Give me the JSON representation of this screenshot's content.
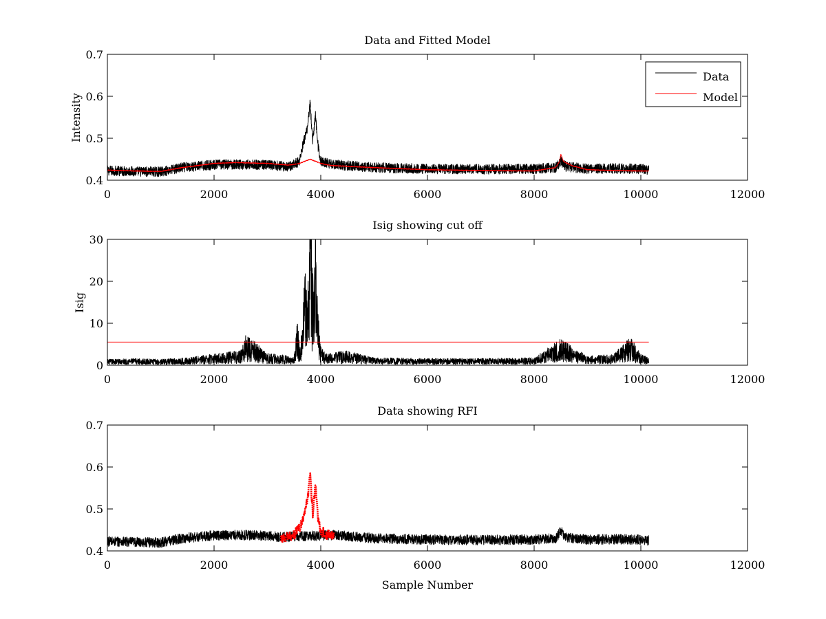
{
  "colors": {
    "data": "#000000",
    "model": "#ff0000",
    "rfi": "#ff0000",
    "axes": "#000000",
    "background": "#ffffff"
  },
  "chart_data": [
    {
      "type": "line",
      "title": "Data and Fitted Model",
      "xlabel": "",
      "ylabel": "Intensity",
      "xlim": [
        0,
        12000
      ],
      "ylim": [
        0.4,
        0.7
      ],
      "xticks": [
        0,
        2000,
        4000,
        6000,
        8000,
        10000,
        12000
      ],
      "yticks": [
        0.4,
        0.5,
        0.6,
        0.7
      ],
      "xtick_labels": [
        "0",
        "2000",
        "4000",
        "6000",
        "8000",
        "10000",
        "12000"
      ],
      "ytick_labels": [
        "0.4",
        "0.5",
        "0.6",
        "0.7"
      ],
      "legend_position": "top-right",
      "legend": [
        "Data",
        "Model"
      ],
      "series": [
        {
          "name": "Data",
          "color": "#000000",
          "x": [
            0,
            500,
            1000,
            1400,
            2000,
            2400,
            3000,
            3400,
            3600,
            3650,
            3700,
            3750,
            3800,
            3850,
            3900,
            3950,
            4000,
            4200,
            5000,
            6000,
            7000,
            8000,
            8400,
            8500,
            8600,
            9000,
            9500,
            10000,
            10150
          ],
          "y": [
            0.423,
            0.421,
            0.42,
            0.43,
            0.437,
            0.438,
            0.436,
            0.432,
            0.445,
            0.475,
            0.5,
            0.52,
            0.586,
            0.49,
            0.556,
            0.48,
            0.445,
            0.438,
            0.43,
            0.427,
            0.426,
            0.427,
            0.43,
            0.445,
            0.432,
            0.427,
            0.428,
            0.427,
            0.425
          ]
        },
        {
          "name": "Model",
          "color": "#ff0000",
          "x": [
            0,
            500,
            1000,
            1400,
            2000,
            2400,
            3000,
            3400,
            3600,
            3700,
            3800,
            3900,
            4000,
            4200,
            5000,
            6000,
            7000,
            8000,
            8400,
            8480,
            8500,
            8550,
            8700,
            9000,
            9500,
            10000,
            10150
          ],
          "y": [
            0.424,
            0.422,
            0.421,
            0.43,
            0.44,
            0.442,
            0.44,
            0.436,
            0.44,
            0.445,
            0.45,
            0.445,
            0.44,
            0.435,
            0.43,
            0.425,
            0.423,
            0.422,
            0.43,
            0.445,
            0.462,
            0.445,
            0.435,
            0.425,
            0.423,
            0.422,
            0.422
          ]
        }
      ]
    },
    {
      "type": "line",
      "title": "Isig showing cut off",
      "xlabel": "",
      "ylabel": "Isig",
      "xlim": [
        0,
        12000
      ],
      "ylim": [
        0,
        30
      ],
      "xticks": [
        0,
        2000,
        4000,
        6000,
        8000,
        10000,
        12000
      ],
      "yticks": [
        0,
        10,
        20,
        30
      ],
      "xtick_labels": [
        "0",
        "2000",
        "4000",
        "6000",
        "8000",
        "10000",
        "12000"
      ],
      "ytick_labels": [
        "0",
        "10",
        "20",
        "30"
      ],
      "series": [
        {
          "name": "",
          "color": "#000000",
          "x": [
            0,
            500,
            1000,
            1500,
            2000,
            2500,
            2600,
            3000,
            3500,
            3560,
            3600,
            3650,
            3700,
            3750,
            3800,
            3850,
            3900,
            3950,
            4000,
            4100,
            4500,
            5000,
            6000,
            7000,
            8000,
            8500,
            9000,
            9500,
            9800,
            10000,
            10150
          ],
          "y": [
            0.8,
            0.9,
            0.8,
            1.0,
            1.5,
            2.0,
            4.2,
            1.6,
            1.2,
            6.0,
            3.0,
            5.0,
            13.5,
            9.0,
            26.2,
            12.0,
            21.0,
            8.0,
            2.5,
            1.5,
            2.0,
            1.0,
            0.9,
            0.9,
            1.0,
            3.5,
            1.2,
            1.5,
            3.8,
            1.5,
            1.0
          ]
        },
        {
          "name": "",
          "color": "#ff0000",
          "x": [
            0,
            10150
          ],
          "y": [
            5.5,
            5.5
          ]
        }
      ]
    },
    {
      "type": "scatter",
      "title": "Data showing RFI",
      "xlabel": "Sample Number",
      "ylabel": "",
      "xlim": [
        0,
        12000
      ],
      "ylim": [
        0.4,
        0.7
      ],
      "xticks": [
        0,
        2000,
        4000,
        6000,
        8000,
        10000,
        12000
      ],
      "yticks": [
        0.4,
        0.5,
        0.6,
        0.7
      ],
      "xtick_labels": [
        "0",
        "2000",
        "4000",
        "6000",
        "8000",
        "10000",
        "12000"
      ],
      "ytick_labels": [
        "0.4",
        "0.5",
        "0.6",
        "0.7"
      ],
      "series": [
        {
          "name": "",
          "color": "#000000",
          "x": [
            0,
            500,
            1000,
            1400,
            2000,
            2400,
            3000,
            3250,
            4300,
            5000,
            6000,
            7000,
            8000,
            8400,
            8500,
            8600,
            9000,
            9500,
            10000,
            10150
          ],
          "y": [
            0.423,
            0.421,
            0.42,
            0.43,
            0.437,
            0.438,
            0.436,
            0.433,
            0.438,
            0.43,
            0.427,
            0.426,
            0.427,
            0.43,
            0.447,
            0.432,
            0.427,
            0.428,
            0.427,
            0.425
          ]
        },
        {
          "name": "",
          "color": "#ff0000",
          "x": [
            3250,
            3400,
            3550,
            3650,
            3700,
            3750,
            3800,
            3850,
            3900,
            3950,
            4000,
            4100,
            4250
          ],
          "y": [
            0.428,
            0.432,
            0.445,
            0.465,
            0.497,
            0.52,
            0.586,
            0.49,
            0.555,
            0.48,
            0.448,
            0.44,
            0.437
          ]
        }
      ]
    }
  ]
}
